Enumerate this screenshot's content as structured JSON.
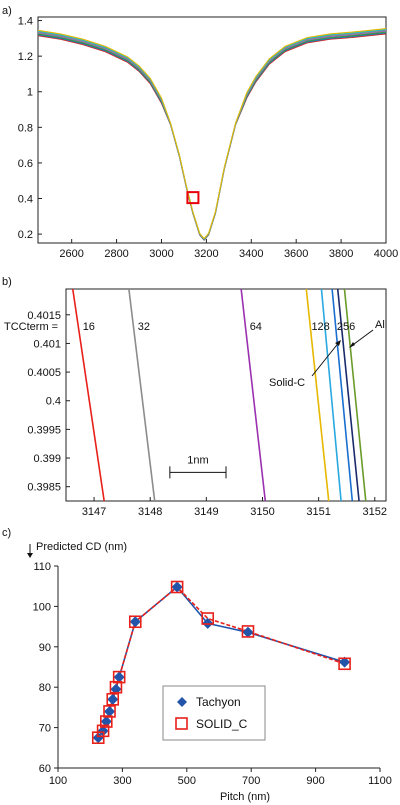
{
  "chart_data": [
    {
      "panel_label": "a)",
      "type": "line",
      "xlim": [
        2450,
        4000
      ],
      "ylim": [
        0.15,
        1.42
      ],
      "xticks": [
        2600,
        2800,
        3000,
        3200,
        3400,
        3600,
        3800,
        4000
      ],
      "yticks": [
        0.2,
        0.4,
        0.6,
        0.8,
        1,
        1.2,
        1.4
      ],
      "ytick_labels": [
        "0.2",
        "0.4",
        "0.6",
        "0.8",
        "1",
        "1.2",
        "1.4"
      ],
      "xlabel": "",
      "ylabel": "",
      "title": "",
      "curve_x": [
        2450,
        2550,
        2650,
        2750,
        2850,
        2900,
        2950,
        3000,
        3040,
        3080,
        3110,
        3140,
        3170,
        3190,
        3210,
        3240,
        3280,
        3330,
        3380,
        3420,
        3480,
        3550,
        3650,
        3750,
        3850,
        4000
      ],
      "curve_y": [
        1.33,
        1.31,
        1.28,
        1.24,
        1.18,
        1.13,
        1.06,
        0.95,
        0.82,
        0.64,
        0.47,
        0.32,
        0.2,
        0.17,
        0.2,
        0.32,
        0.57,
        0.82,
        0.98,
        1.07,
        1.17,
        1.24,
        1.29,
        1.31,
        1.32,
        1.34
      ],
      "series_colors": [
        "#d62728",
        "#1f77b4",
        "#2ca02c",
        "#9467bd",
        "#888888",
        "#17becf",
        "#e6b800"
      ],
      "marker": {
        "x": 3140,
        "y": 0.405,
        "shape": "square",
        "color": "#e8000b"
      }
    },
    {
      "panel_label": "b)",
      "type": "line",
      "xlim": [
        3146.5,
        3152.2
      ],
      "ylim": [
        0.39825,
        0.40195
      ],
      "xticks": [
        3147,
        3148,
        3149,
        3150,
        3151,
        3152
      ],
      "yticks": [
        0.3985,
        0.399,
        0.3995,
        0.4,
        0.4005,
        0.401,
        0.4015
      ],
      "ytick_labels": [
        "0.3985",
        "0.399",
        "0.3995",
        "0.4",
        "0.4005",
        "0.401",
        "0.4015"
      ],
      "lines": [
        {
          "label": "16",
          "color": "#e8201a",
          "x_top": 3146.62,
          "x_bottom": 3147.18
        },
        {
          "label": "32",
          "color": "#8c8c8c",
          "x_top": 3147.62,
          "x_bottom": 3148.08
        },
        {
          "label": "64",
          "color": "#9b30b0",
          "x_top": 3149.62,
          "x_bottom": 3150.05
        },
        {
          "label": "128",
          "color": "#e6b800",
          "x_top": 3150.78,
          "x_bottom": 3151.18
        },
        {
          "label": "",
          "color": "#29a9e0",
          "x_top": 3151.05,
          "x_bottom": 3151.4
        },
        {
          "label": "256",
          "color": "#1a6fd0",
          "x_top": 3151.24,
          "x_bottom": 3151.6
        },
        {
          "label": "",
          "color": "#1a2a6c",
          "x_top": 3151.34,
          "x_bottom": 3151.72
        },
        {
          "label": "",
          "color": "#6a9a2a",
          "x_top": 3151.46,
          "x_bottom": 3151.84
        }
      ],
      "tcc_prefix": "TCCterm = ",
      "annotations": {
        "all": "All",
        "solid_c": "Solid-C",
        "scale_bar": "1nm"
      },
      "scale_bar_x": [
        3148.35,
        3149.35
      ],
      "scale_bar_y": 0.39875
    },
    {
      "panel_label": "c)",
      "type": "line",
      "ylabel": "Predicted CD (nm)",
      "xlabel": "Pitch (nm)",
      "xlim": [
        100,
        1100
      ],
      "ylim": [
        60,
        110
      ],
      "xticks": [
        100,
        300,
        500,
        700,
        900,
        1100
      ],
      "yticks": [
        60,
        70,
        80,
        90,
        100,
        110
      ],
      "x": [
        225,
        240,
        250,
        260,
        270,
        280,
        290,
        340,
        470,
        565,
        690,
        990
      ],
      "series": [
        {
          "name": "Tachyon",
          "color": "#2255aa",
          "marker": "diamond",
          "line": "solid",
          "values": [
            67.5,
            69.2,
            71.5,
            74,
            77,
            79.5,
            82.5,
            96.2,
            104.8,
            95.8,
            93.6,
            86.2
          ]
        },
        {
          "name": "SOLID_C",
          "color": "#e8201a",
          "marker": "square",
          "line": "dashed",
          "values": [
            67.5,
            69.2,
            71.5,
            74,
            77,
            80,
            82.5,
            96.2,
            104.8,
            97,
            93.8,
            85.8
          ]
        }
      ],
      "legend_position": "bottom-center"
    }
  ]
}
